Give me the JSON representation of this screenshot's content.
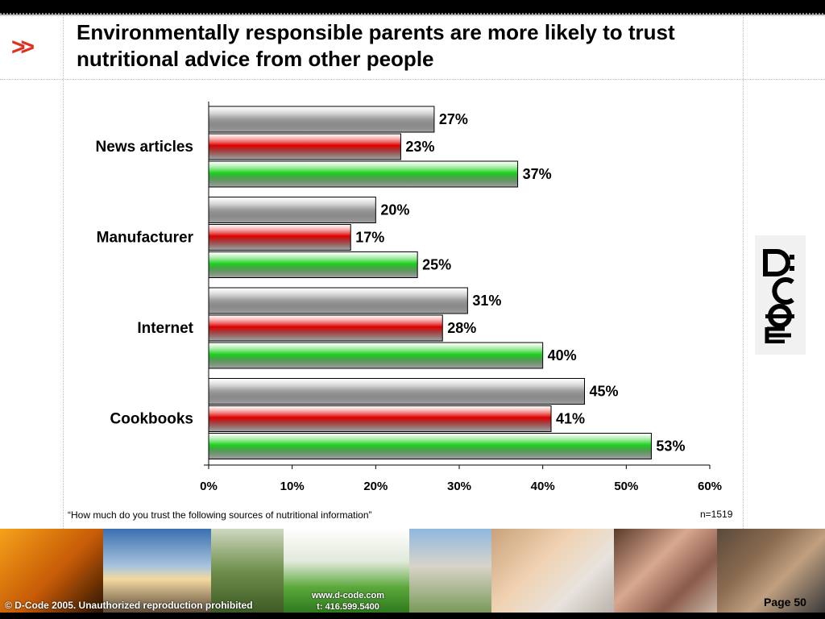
{
  "slide": {
    "title": "Environmentally responsible parents are more likely to trust nutritional advice from other people",
    "chevron": ">>",
    "question": "“How much do you trust the following sources of nutritional information”",
    "sample_size": "n=1519",
    "logo_text": "D:CODE"
  },
  "footer": {
    "copyright": "© D-Code 2005.  Unauthorized reproduction prohibited",
    "website": "www.d-code.com",
    "phone": "t: 416.599.5400",
    "page": "Page 50"
  },
  "colors": {
    "grey": "#a6a6a6",
    "red": "#e00000",
    "green": "#1fd21f",
    "accent": "#e0301e"
  },
  "chart_data": {
    "type": "bar",
    "orientation": "horizontal",
    "categories": [
      "News articles",
      "Manufacturer",
      "Internet",
      "Cookbooks"
    ],
    "series": [
      {
        "values": [
          27,
          20,
          31,
          45
        ],
        "color": "#a6a6a6"
      },
      {
        "values": [
          23,
          17,
          28,
          41
        ],
        "color": "#e00000"
      },
      {
        "values": [
          37,
          25,
          40,
          53
        ],
        "color": "#1fd21f"
      }
    ],
    "value_labels": [
      [
        "27%",
        "20%",
        "31%",
        "45%"
      ],
      [
        "23%",
        "17%",
        "28%",
        "41%"
      ],
      [
        "37%",
        "25%",
        "40%",
        "53%"
      ]
    ],
    "xlim": [
      0,
      60
    ],
    "xticks": [
      "0%",
      "10%",
      "20%",
      "30%",
      "40%",
      "50%",
      "60%"
    ],
    "grid": false,
    "legend": "none"
  }
}
